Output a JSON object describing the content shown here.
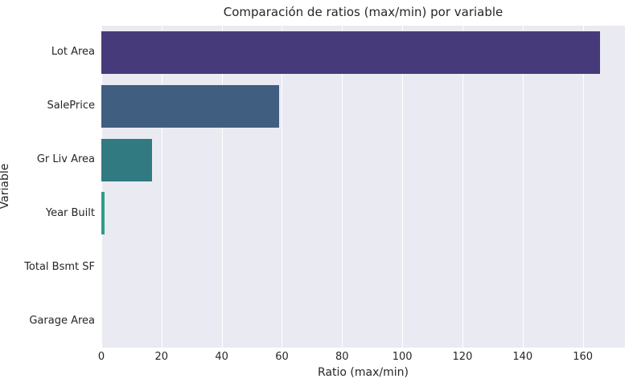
{
  "chart_data": {
    "type": "bar",
    "orientation": "horizontal",
    "title": "Comparación de ratios (max/min) por variable",
    "xlabel": "Ratio (max/min)",
    "ylabel": "Variable",
    "categories": [
      "Lot Area",
      "SalePrice",
      "Gr Liv Area",
      "Year Built",
      "Total Bsmt SF",
      "Garage Area"
    ],
    "values": [
      165.6,
      59.0,
      16.9,
      1.07,
      0,
      0
    ],
    "bar_colors": [
      "#473a7b",
      "#3f5e80",
      "#327a82",
      "#2e9c86"
    ],
    "xticks": [
      0,
      20,
      40,
      60,
      80,
      100,
      120,
      140,
      160
    ],
    "xlim": [
      0,
      174
    ],
    "grid": "vertical-white",
    "legend": "none",
    "plot_bg_color": "#eaeaf2",
    "figure_bg_color": "#ffffff",
    "gridline_color": "#ffffff",
    "text_color": "#262626"
  }
}
